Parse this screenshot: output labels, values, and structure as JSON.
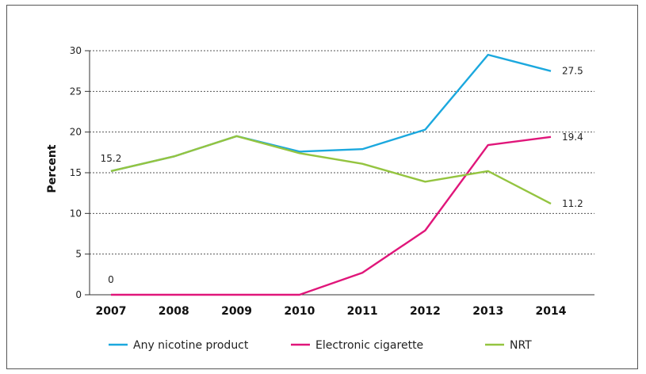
{
  "chart_data": {
    "type": "line",
    "ylabel": "Percent",
    "xlabel": "",
    "title": "",
    "x": [
      "2007",
      "2008",
      "2009",
      "2010",
      "2011",
      "2012",
      "2013",
      "2014"
    ],
    "ylim": [
      0,
      30
    ],
    "yticks": [
      "0",
      "5",
      "10",
      "15",
      "20",
      "25",
      "30"
    ],
    "grid": "horizontal dotted",
    "legend_position": "bottom",
    "series": [
      {
        "name": "Any nicotine product",
        "color": "#1ba8de",
        "values": [
          15.2,
          17.0,
          19.5,
          17.6,
          17.9,
          20.3,
          29.5,
          27.5
        ]
      },
      {
        "name": "Electronic cigarette",
        "color": "#e0167a",
        "values": [
          0,
          0,
          0,
          0,
          2.7,
          7.9,
          18.4,
          19.4
        ]
      },
      {
        "name": "NRT",
        "color": "#94c440",
        "values": [
          15.2,
          17.0,
          19.5,
          17.4,
          16.1,
          13.9,
          15.2,
          11.2
        ]
      }
    ],
    "annotations": [
      {
        "text": "15.2",
        "series": 0,
        "index": 0
      },
      {
        "text": "0",
        "series": 1,
        "index": 0
      },
      {
        "text": "27.5",
        "series": 0,
        "index": 7
      },
      {
        "text": "19.4",
        "series": 1,
        "index": 7
      },
      {
        "text": "11.2",
        "series": 2,
        "index": 7
      }
    ]
  }
}
